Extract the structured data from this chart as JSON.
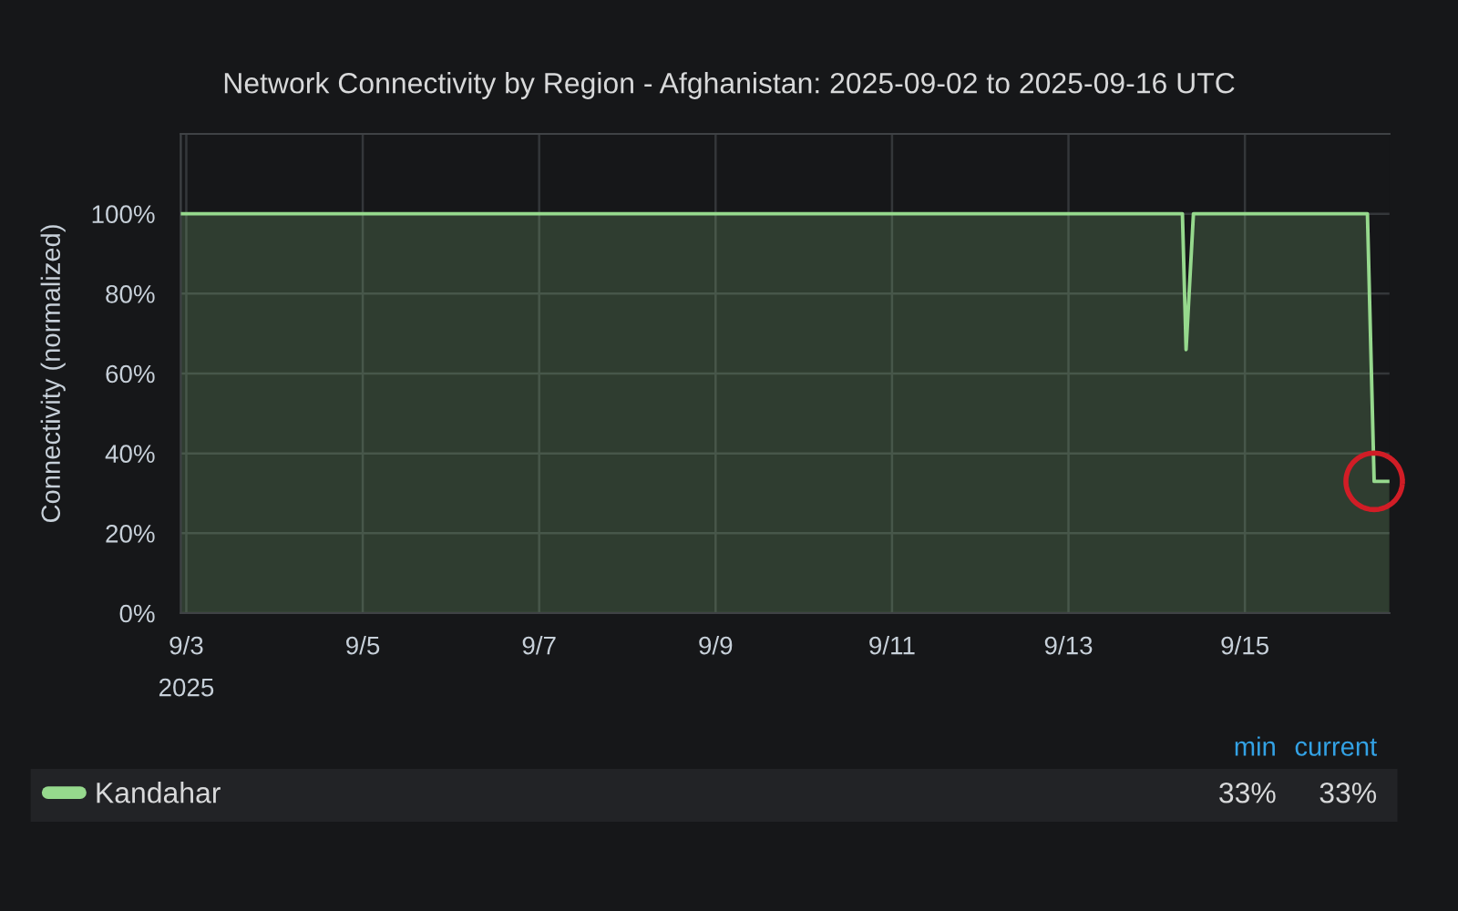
{
  "chart_data": {
    "type": "area",
    "title": "Network Connectivity by Region - Afghanistan: 2025-09-02 to 2025-09-16 UTC",
    "ylabel": "Connectivity (normalized)",
    "x": [
      "2025-09-02T22:30",
      "2025-09-14T07:00",
      "2025-09-14T08:00",
      "2025-09-14T10:00",
      "2025-09-16T09:20",
      "2025-09-16T11:10",
      "2025-09-16T15:20"
    ],
    "series": [
      {
        "name": "Kandahar",
        "color": "#96d98d",
        "values": [
          100,
          100,
          66,
          100,
          100,
          33,
          33
        ]
      }
    ],
    "xlim": [
      "2025-09-02T22:30",
      "2025-09-16T15:20"
    ],
    "xticks": [
      {
        "value": "2025-09-03",
        "label": "9/3\n2025"
      },
      {
        "value": "2025-09-05",
        "label": "9/5"
      },
      {
        "value": "2025-09-07",
        "label": "9/7"
      },
      {
        "value": "2025-09-09",
        "label": "9/9"
      },
      {
        "value": "2025-09-11",
        "label": "9/11"
      },
      {
        "value": "2025-09-13",
        "label": "9/13"
      },
      {
        "value": "2025-09-15",
        "label": "9/15"
      }
    ],
    "ylim": [
      0,
      120
    ],
    "yticks": [
      {
        "value": 0,
        "label": "0%"
      },
      {
        "value": 20,
        "label": "20%"
      },
      {
        "value": 40,
        "label": "40%"
      },
      {
        "value": 60,
        "label": "60%"
      },
      {
        "value": 80,
        "label": "80%"
      },
      {
        "value": 100,
        "label": "100%"
      }
    ],
    "annotations": [
      "min",
      "current",
      "33%",
      "33%"
    ],
    "grid": true,
    "legend": "bottom",
    "line_style": "solid"
  }
}
